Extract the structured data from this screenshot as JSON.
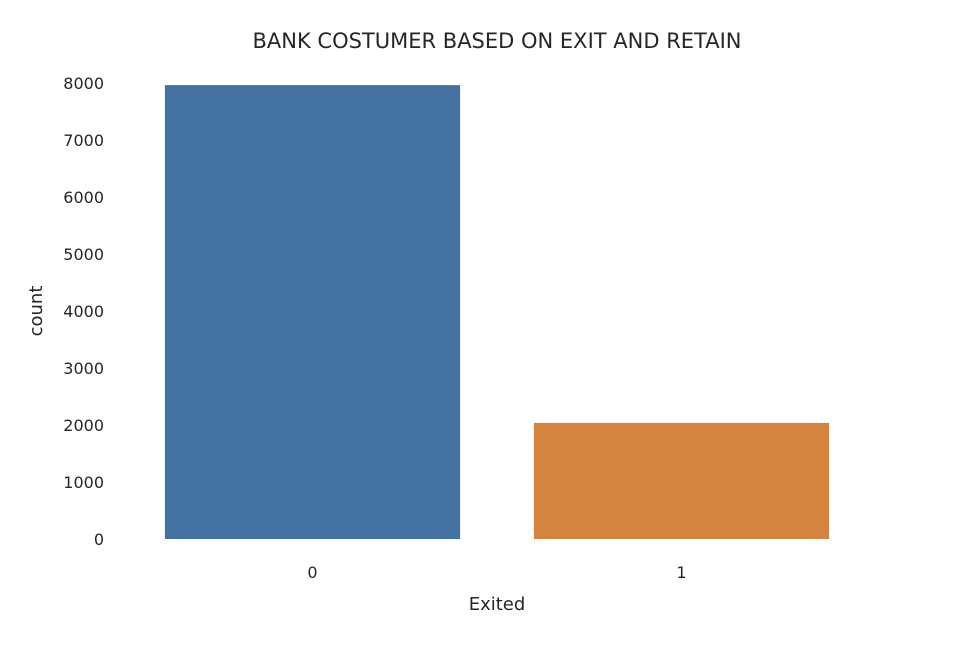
{
  "chart_data": {
    "type": "bar",
    "title": "BANK COSTUMER BASED ON EXIT AND RETAIN",
    "xlabel": "Exited",
    "ylabel": "count",
    "categories": [
      "0",
      "1"
    ],
    "values": [
      7963,
      2037
    ],
    "colors": [
      "#4472a0",
      "#d48440"
    ],
    "ylim": [
      0,
      8000
    ],
    "yticks": [
      0,
      1000,
      2000,
      3000,
      4000,
      5000,
      6000,
      7000,
      8000
    ],
    "grid": false,
    "legend": "none"
  }
}
